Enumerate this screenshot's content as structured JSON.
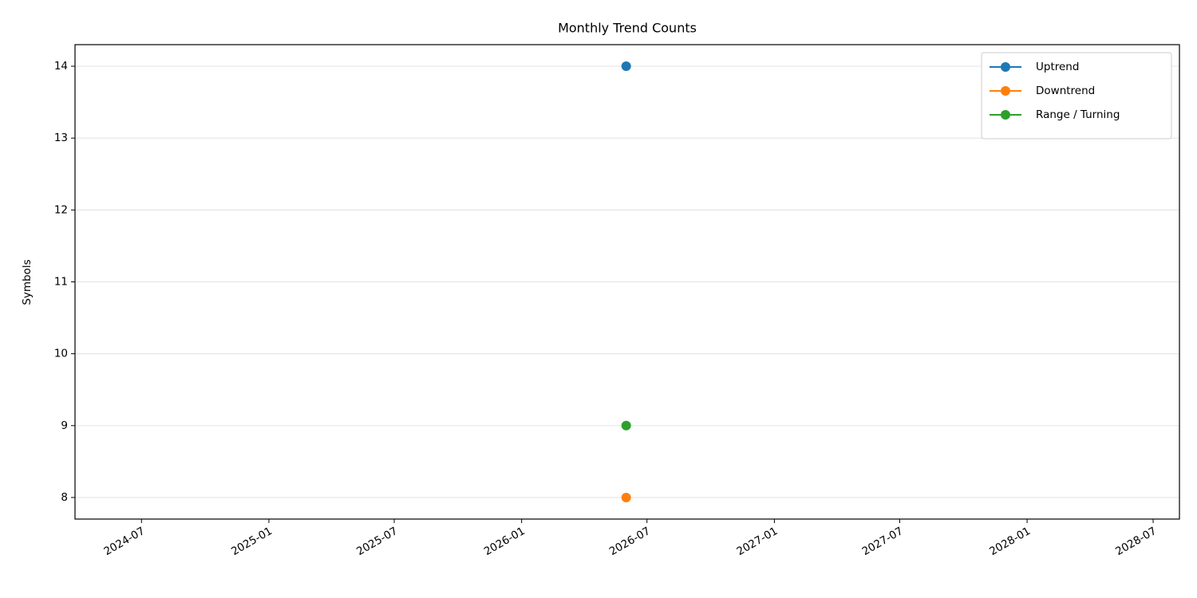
{
  "chart_data": {
    "type": "line",
    "title": "Monthly Trend Counts",
    "y_label": "Symbols",
    "x": [
      "2026-06"
    ],
    "series": [
      {
        "name": "Uptrend",
        "color": "#1f77b4",
        "values": [
          14
        ]
      },
      {
        "name": "Downtrend",
        "color": "#ff7f0e",
        "values": [
          8
        ]
      },
      {
        "name": "Range / Turning",
        "color": "#2ca02c",
        "values": [
          9
        ]
      }
    ],
    "xlim": [
      "2024-03-27",
      "2028-08-08"
    ],
    "xticks": [
      "2024-07",
      "2025-01",
      "2025-07",
      "2026-01",
      "2026-07",
      "2027-01",
      "2027-07",
      "2028-01",
      "2028-07"
    ],
    "ylim": [
      7.7,
      14.3
    ],
    "yticks": [
      8,
      9,
      10,
      11,
      12,
      13,
      14
    ],
    "grid": "y",
    "legend": "upper right"
  }
}
